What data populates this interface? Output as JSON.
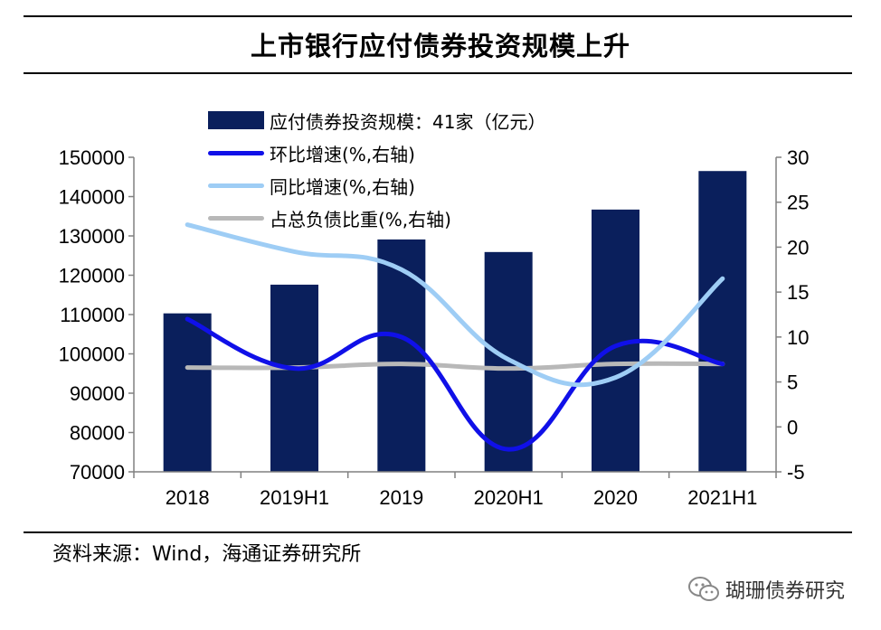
{
  "title": "上市银行应付债券投资规模上升",
  "source": "资料来源：Wind，海通证券研究所",
  "watermark": "瑚珊债券研究",
  "colors": {
    "bar": "#0a1f5c",
    "hb": "#1010e8",
    "yoy": "#9ecdf5",
    "share": "#b8b8b8"
  },
  "chart_data": {
    "type": "bar+line",
    "categories": [
      "2018",
      "2019H1",
      "2019",
      "2020H1",
      "2020",
      "2021H1"
    ],
    "left_axis": {
      "min": 70000,
      "max": 150000,
      "step": 10000,
      "ticks": [
        "70000",
        "80000",
        "90000",
        "100000",
        "110000",
        "120000",
        "130000",
        "140000",
        "150000"
      ]
    },
    "right_axis": {
      "min": -5,
      "max": 30,
      "step": 5,
      "ticks": [
        "-5",
        "0",
        "5",
        "10",
        "15",
        "20",
        "25",
        "30"
      ]
    },
    "series": [
      {
        "name": "应付债券投资规模：41家（亿元）",
        "type": "bar",
        "axis": "left",
        "color": "#0a1f5c",
        "values": [
          110300,
          117600,
          129100,
          125900,
          136700,
          146500
        ]
      },
      {
        "name": "环比增速(%,右轴)",
        "type": "line",
        "axis": "right",
        "color": "#1010e8",
        "values": [
          12.0,
          6.5,
          10.0,
          -2.5,
          9.0,
          7.0
        ]
      },
      {
        "name": "同比增速(%,右轴)",
        "type": "line",
        "axis": "right",
        "color": "#9ecdf5",
        "values": [
          22.5,
          19.5,
          17.5,
          7.5,
          5.5,
          16.5
        ]
      },
      {
        "name": "占总负债比重(%,右轴)",
        "type": "line",
        "axis": "right",
        "color": "#b8b8b8",
        "values": [
          6.6,
          6.6,
          7.0,
          6.5,
          7.0,
          7.0
        ]
      }
    ]
  }
}
